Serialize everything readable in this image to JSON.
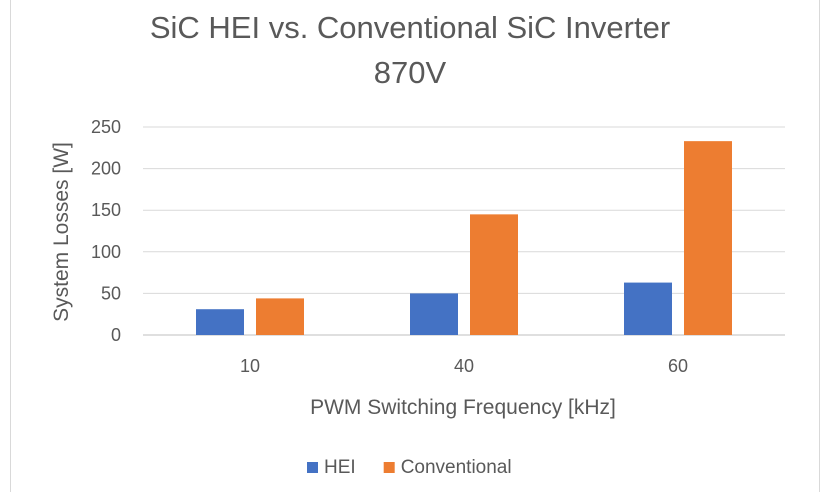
{
  "chart_data": {
    "type": "bar",
    "title": "SiC HEI vs. Conventional SiC Inverter",
    "subtitle": "870V",
    "xlabel": "PWM Switching Frequency [kHz]",
    "ylabel": "System Losses [W]",
    "categories": [
      "10",
      "40",
      "60"
    ],
    "ylim": [
      0,
      250
    ],
    "yticks": [
      0,
      50,
      100,
      150,
      200,
      250
    ],
    "grid": true,
    "legend_position": "bottom",
    "series": [
      {
        "name": "HEI",
        "color": "#4472c4",
        "values": [
          31,
          50,
          63
        ]
      },
      {
        "name": "Conventional",
        "color": "#ed7d31",
        "values": [
          44,
          145,
          233
        ]
      }
    ]
  }
}
